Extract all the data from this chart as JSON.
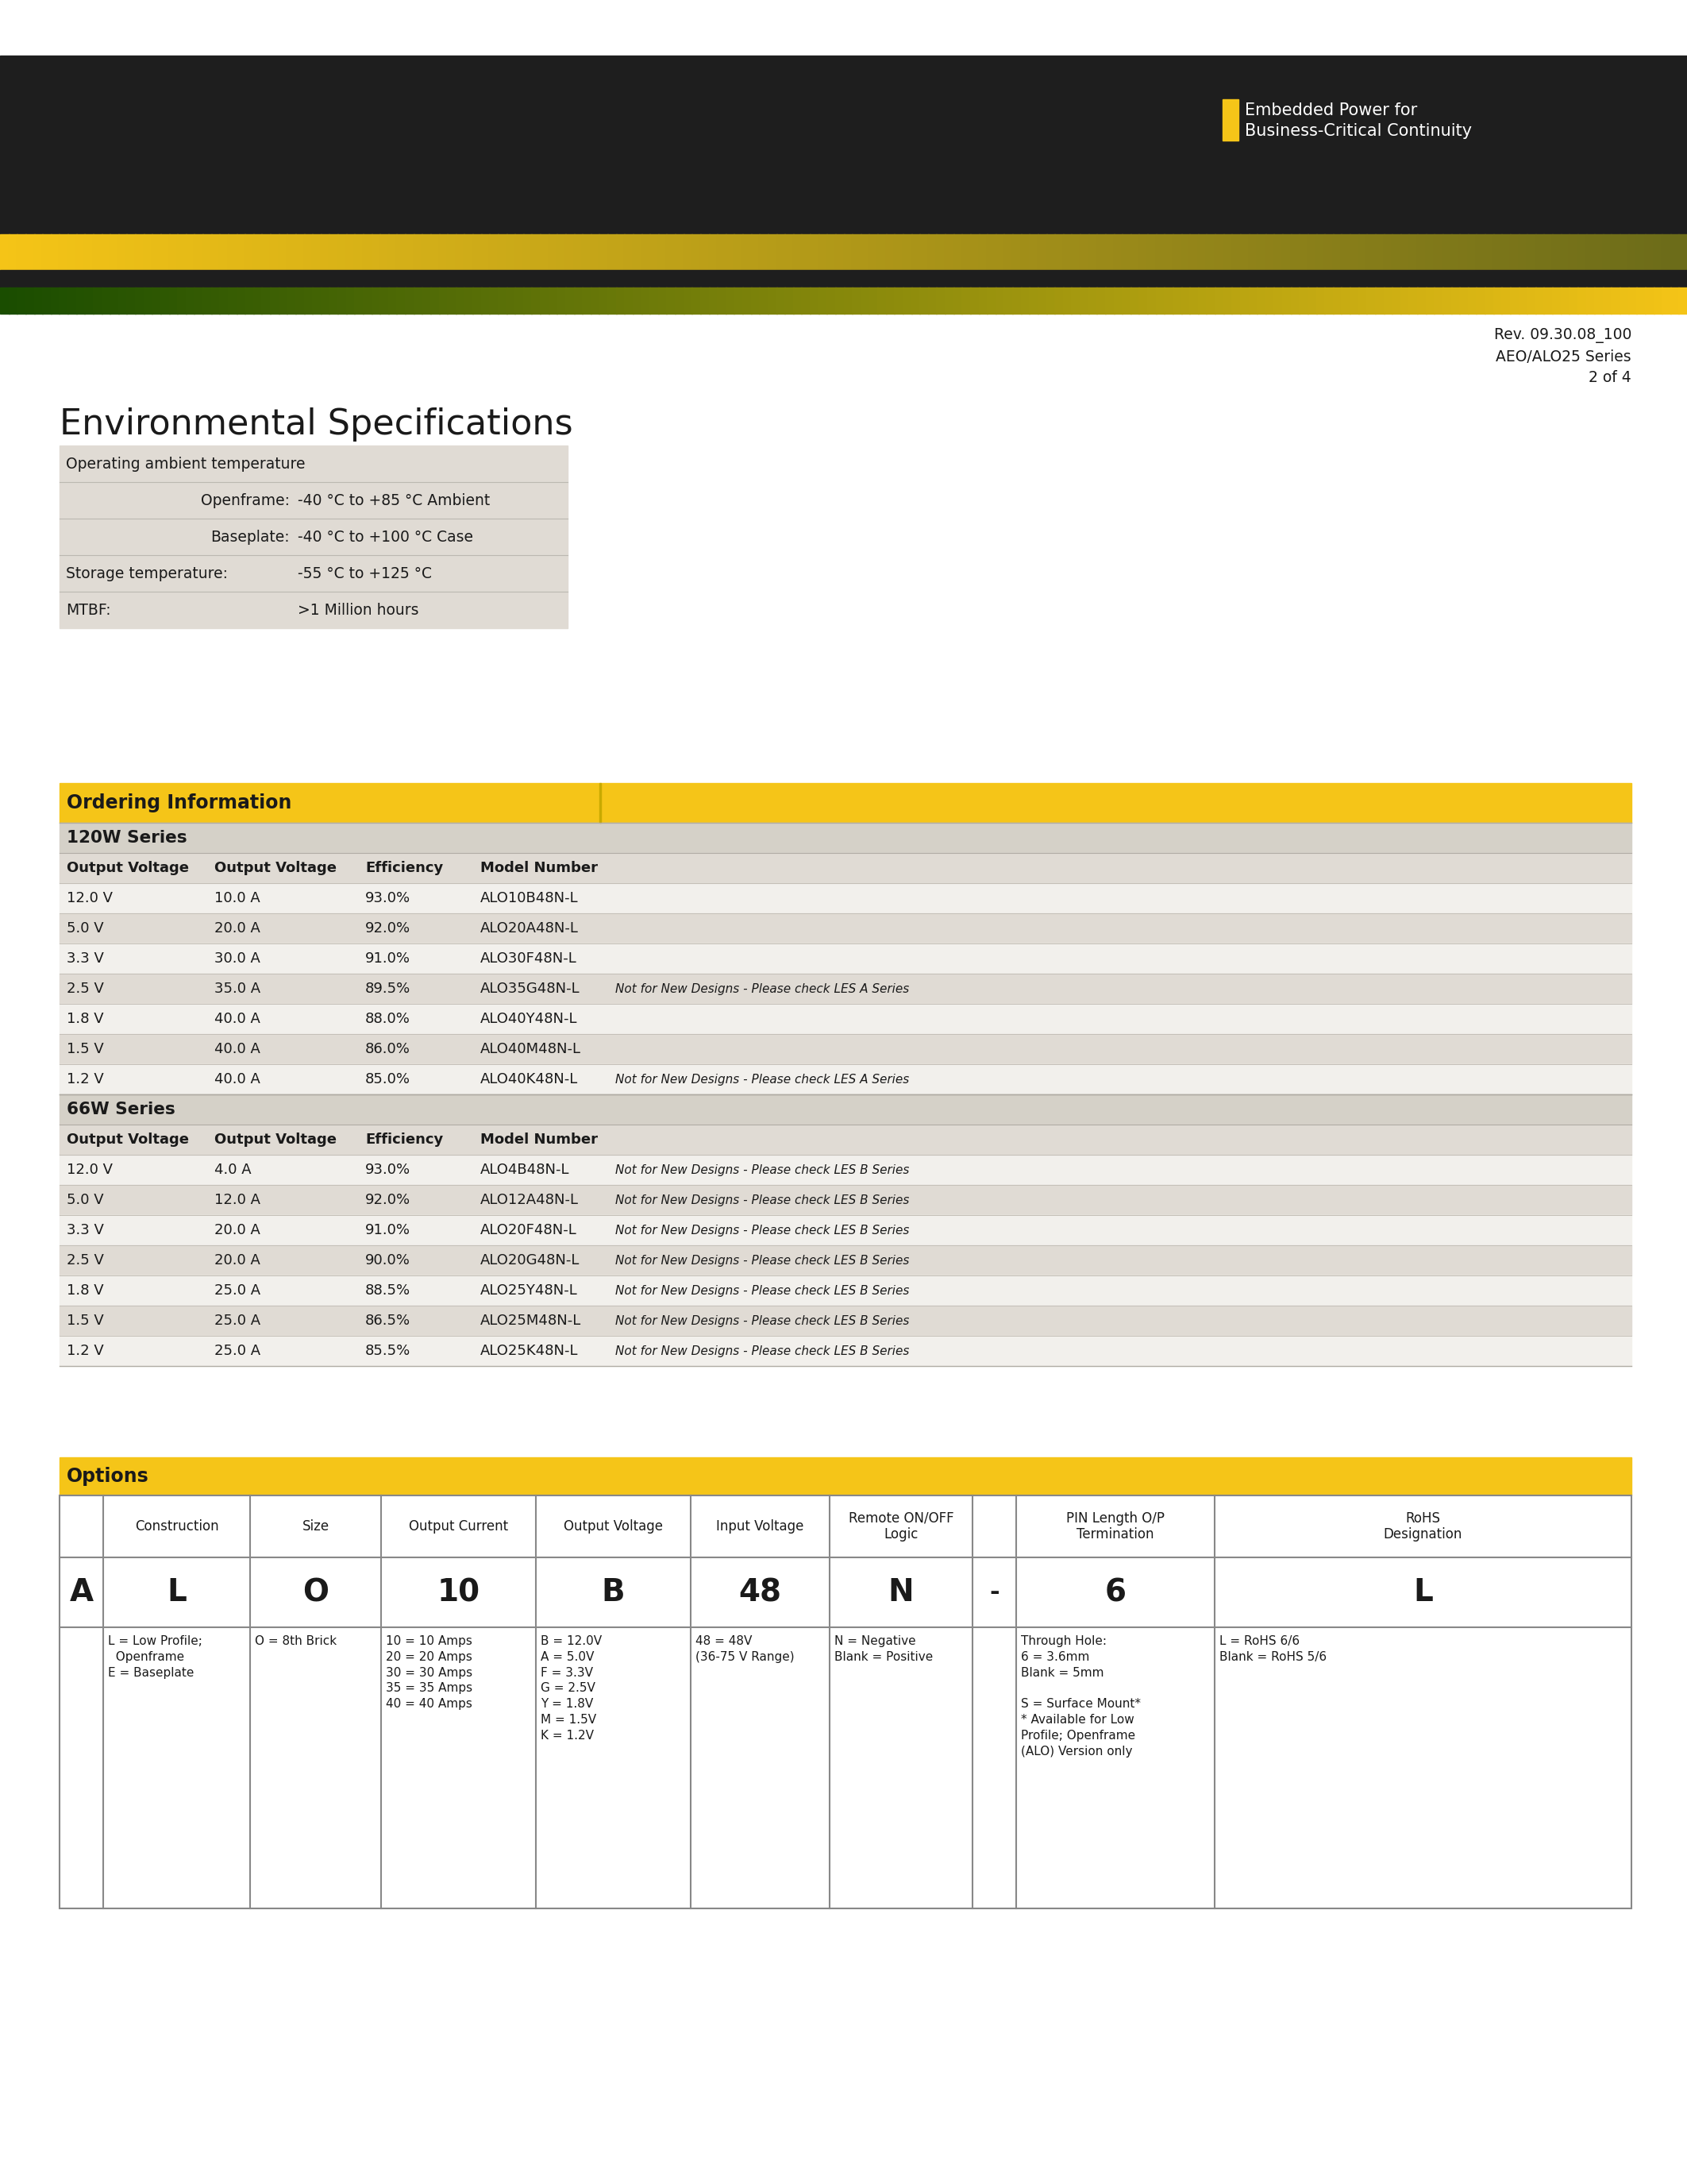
{
  "bg_color": "#ffffff",
  "header_dark": "#1e1e1e",
  "header_yellow": "#f5c518",
  "yellow_accent": "#f5c518",
  "text_dark": "#1a1a1a",
  "env_table_bg": "#e0dbd4",
  "rev_text": "Rev. 09.30.08_100\nAEO/ALO25 Series\n2 of 4",
  "logo_text1": "Embedded Power for",
  "logo_text2": "Business-Critical Continuity",
  "env_title": "Environmental Specifications",
  "env_table": [
    [
      "Operating ambient temperature",
      "",
      ""
    ],
    [
      "",
      "Openframe:",
      "-40 °C to +85 °C Ambient"
    ],
    [
      "",
      "Baseplate:",
      "-40 °C to +100 °C Case"
    ],
    [
      "Storage temperature:",
      "",
      "-55 °C to +125 °C"
    ],
    [
      "MTBF:",
      "",
      ">1 Million hours"
    ]
  ],
  "ordering_header": "Ordering Information",
  "ordering_120w_header": "120W Series",
  "ordering_66w_header": "66W Series",
  "ordering_col_headers": [
    "Output Voltage",
    "Output Voltage",
    "Efficiency",
    "Model Number"
  ],
  "ordering_120w_data": [
    [
      "12.0 V",
      "10.0 A",
      "93.0%",
      "ALO10B48N-L",
      ""
    ],
    [
      "5.0 V",
      "20.0 A",
      "92.0%",
      "ALO20A48N-L",
      ""
    ],
    [
      "3.3 V",
      "30.0 A",
      "91.0%",
      "ALO30F48N-L",
      ""
    ],
    [
      "2.5 V",
      "35.0 A",
      "89.5%",
      "ALO35G48N-L",
      "Not for New Designs - Please check LES A Series"
    ],
    [
      "1.8 V",
      "40.0 A",
      "88.0%",
      "ALO40Y48N-L",
      ""
    ],
    [
      "1.5 V",
      "40.0 A",
      "86.0%",
      "ALO40M48N-L",
      ""
    ],
    [
      "1.2 V",
      "40.0 A",
      "85.0%",
      "ALO40K48N-L",
      "Not for New Designs - Please check LES A Series"
    ]
  ],
  "ordering_66w_data": [
    [
      "12.0 V",
      "4.0 A",
      "93.0%",
      "ALO4B48N-L",
      "Not for New Designs - Please check LES B Series"
    ],
    [
      "5.0 V",
      "12.0 A",
      "92.0%",
      "ALO12A48N-L",
      "Not for New Designs - Please check LES B Series"
    ],
    [
      "3.3 V",
      "20.0 A",
      "91.0%",
      "ALO20F48N-L",
      "Not for New Designs - Please check LES B Series"
    ],
    [
      "2.5 V",
      "20.0 A",
      "90.0%",
      "ALO20G48N-L",
      "Not for New Designs - Please check LES B Series"
    ],
    [
      "1.8 V",
      "25.0 A",
      "88.5%",
      "ALO25Y48N-L",
      "Not for New Designs - Please check LES B Series"
    ],
    [
      "1.5 V",
      "25.0 A",
      "86.5%",
      "ALO25M48N-L",
      "Not for New Designs - Please check LES B Series"
    ],
    [
      "1.2 V",
      "25.0 A",
      "85.5%",
      "ALO25K48N-L",
      "Not for New Designs - Please check LES B Series"
    ]
  ],
  "options_header": "Options",
  "options_col_headers": [
    "",
    "Construction",
    "Size",
    "Output Current",
    "Output Voltage",
    "Input Voltage",
    "Remote ON/OFF\nLogic",
    "",
    "PIN Length O/P\nTermination",
    "RoHS\nDesignation"
  ],
  "options_example": [
    "A",
    "L",
    "O",
    "10",
    "B",
    "48",
    "N",
    "-",
    "6",
    "L"
  ],
  "options_descriptions": [
    "",
    "L = Low Profile;\n  Openframe\nE = Baseplate",
    "O = 8th Brick",
    "10 = 10 Amps\n20 = 20 Amps\n30 = 30 Amps\n35 = 35 Amps\n40 = 40 Amps",
    "B = 12.0V\nA = 5.0V\nF = 3.3V\nG = 2.5V\nY = 1.8V\nM = 1.5V\nK = 1.2V",
    "48 = 48V\n(36-75 V Range)",
    "N = Negative\nBlank = Positive",
    "",
    "Through Hole:\n6 = 3.6mm\nBlank = 5mm\n\nS = Surface Mount*\n* Available for Low\nProfile; Openframe\n(ALO) Version only",
    "L = RoHS 6/6\nBlank = RoHS 5/6"
  ]
}
